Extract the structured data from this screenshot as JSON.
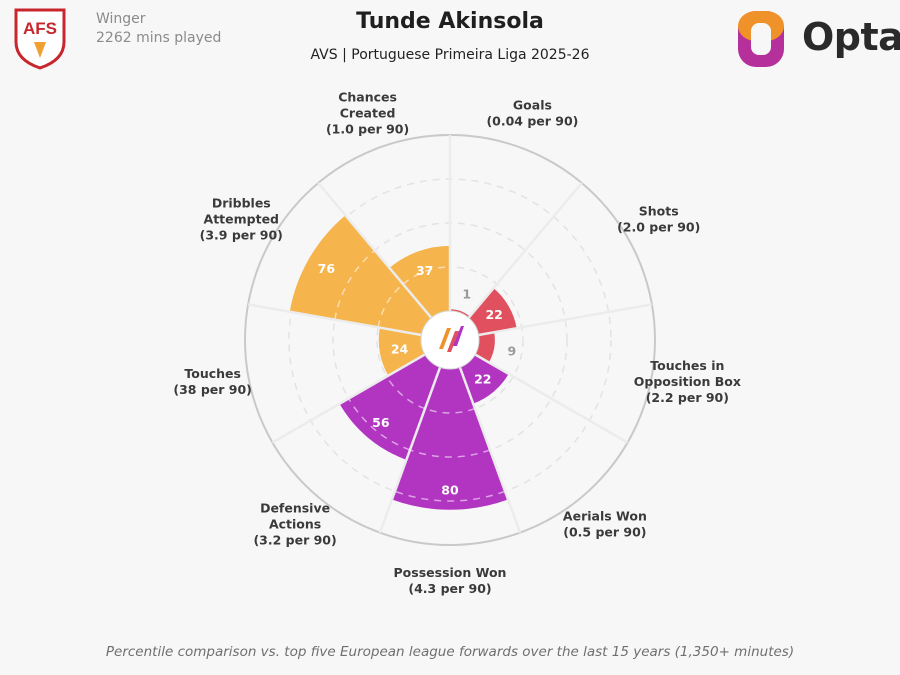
{
  "header": {
    "position": "Winger",
    "minutes": "2262 mins played",
    "player_name": "Tunde Akinsola",
    "subtitle": "AVS | Portuguese Primeira Liga 2025-26",
    "club_badge_text": "AFS",
    "brand_text": "Opta"
  },
  "footer": {
    "note": "Percentile comparison vs. top five European league forwards over the last 15 years (1,350+ minutes)"
  },
  "colors": {
    "attacking": "#e0505f",
    "possession_orange": "#f5b44c",
    "defending": "#b235c2",
    "neutral_value": "#9a9a9a",
    "club_red": "#c8262d",
    "opta_orange": "#f0922a",
    "opta_magenta": "#b5309b"
  },
  "chart_data": {
    "type": "polar-bar",
    "value_range": [
      0,
      100
    ],
    "grid": true,
    "metrics": [
      {
        "name": "Goals",
        "sub": "(0.04 per 90)",
        "percentile": 1,
        "group": "attacking"
      },
      {
        "name": "Shots",
        "sub": "(2.0 per 90)",
        "percentile": 22,
        "group": "attacking"
      },
      {
        "name": "Touches in Opposition Box",
        "sub": "(2.2 per 90)",
        "percentile": 9,
        "group": "attacking"
      },
      {
        "name": "Aerials Won",
        "sub": "(0.5 per 90)",
        "percentile": 22,
        "group": "defending"
      },
      {
        "name": "Possession Won",
        "sub": "(4.3 per 90)",
        "percentile": 80,
        "group": "defending"
      },
      {
        "name": "Defensive Actions",
        "sub": "(3.2 per 90)",
        "percentile": 56,
        "group": "defending"
      },
      {
        "name": "Touches",
        "sub": "(38 per 90)",
        "percentile": 24,
        "group": "possession"
      },
      {
        "name": "Dribbles Attempted",
        "sub": "(3.9 per 90)",
        "percentile": 76,
        "group": "possession"
      },
      {
        "name": "Chances Created",
        "sub": "(1.0 per 90)",
        "percentile": 37,
        "group": "possession"
      }
    ]
  }
}
